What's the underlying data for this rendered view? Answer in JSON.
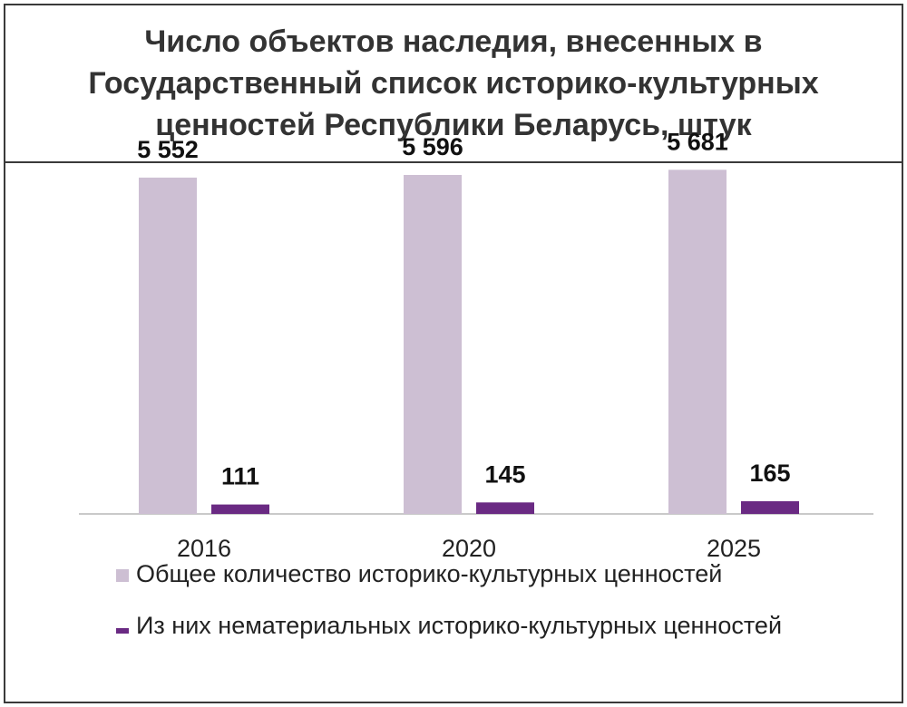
{
  "chart_data": {
    "type": "bar",
    "title": "Число объектов наследия, внесенных в Государственный список историко-культурных ценностей Республики Беларусь, штук",
    "categories": [
      "2016",
      "2020",
      "2025"
    ],
    "series": [
      {
        "name": "Общее количество историко-культурных ценностей",
        "values": [
          5552,
          5596,
          5681
        ],
        "labels": [
          "5 552",
          "5 596",
          "5 681"
        ],
        "color": "#cdbfd3"
      },
      {
        "name": "Из них нематериальных историко-культурных ценностей",
        "values": [
          111,
          145,
          165
        ],
        "labels": [
          "111",
          "145",
          "165"
        ],
        "color": "#6a2a83"
      }
    ],
    "ylim": [
      0,
      6000
    ],
    "grid": false,
    "legend": "bottom"
  }
}
